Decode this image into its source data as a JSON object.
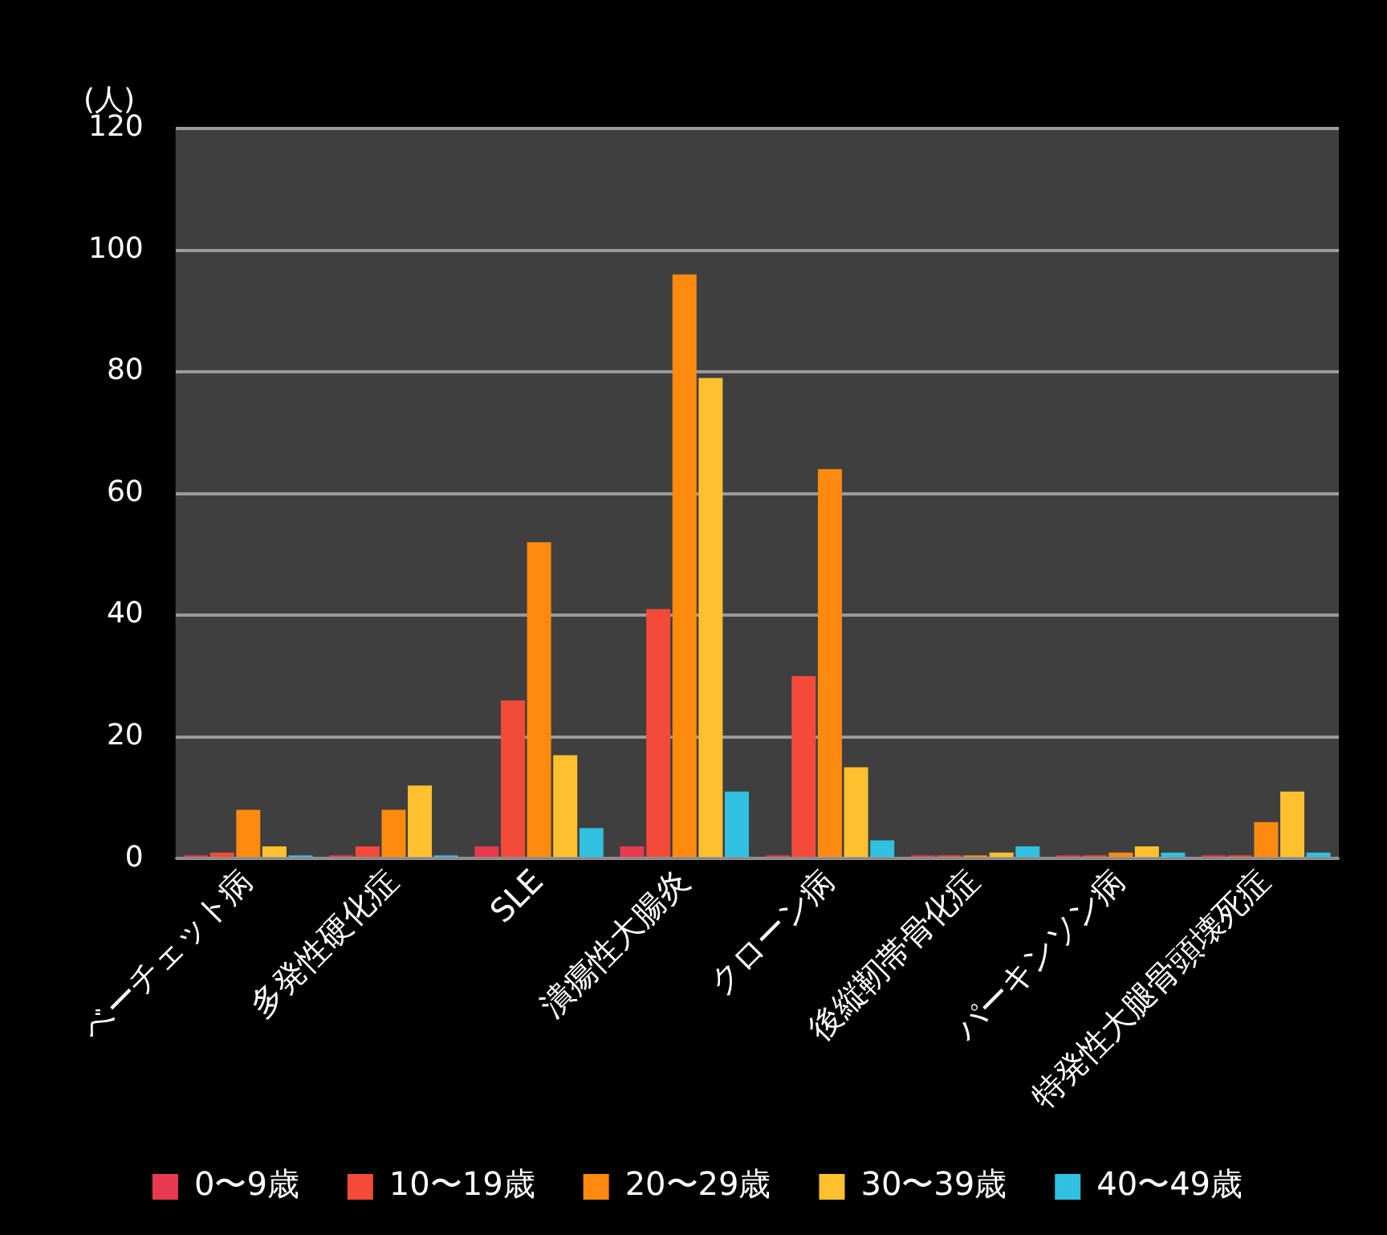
{
  "chart_data": {
    "type": "bar",
    "ylabel": "(人)",
    "categories": [
      "ベーチェット病",
      "多発性硬化症",
      "SLE",
      "潰瘍性大腸炎",
      "クローン病",
      "後縦靭帯骨化症",
      "パーキンソン病",
      "特発性大腿骨頭壊死症"
    ],
    "series": [
      {
        "name": "0〜9歳",
        "color": "#e83a50",
        "values": [
          0,
          0,
          2,
          2,
          0,
          0,
          0,
          0
        ]
      },
      {
        "name": "10〜19歳",
        "color": "#f44a3a",
        "values": [
          1,
          2,
          26,
          41,
          30,
          0,
          0,
          0
        ]
      },
      {
        "name": "20〜29歳",
        "color": "#ff8a10",
        "values": [
          8,
          8,
          52,
          96,
          64,
          0,
          1,
          6
        ]
      },
      {
        "name": "30〜39歳",
        "color": "#ffc030",
        "values": [
          2,
          12,
          17,
          79,
          15,
          1,
          2,
          11
        ]
      },
      {
        "name": "40〜49歳",
        "color": "#30c0e0",
        "values": [
          0,
          0,
          5,
          11,
          3,
          2,
          1,
          1
        ]
      }
    ],
    "ylim": [
      0,
      120
    ],
    "yticks": [
      0,
      20,
      40,
      60,
      80,
      100,
      120
    ],
    "grid": "y",
    "legend": "bottom"
  }
}
